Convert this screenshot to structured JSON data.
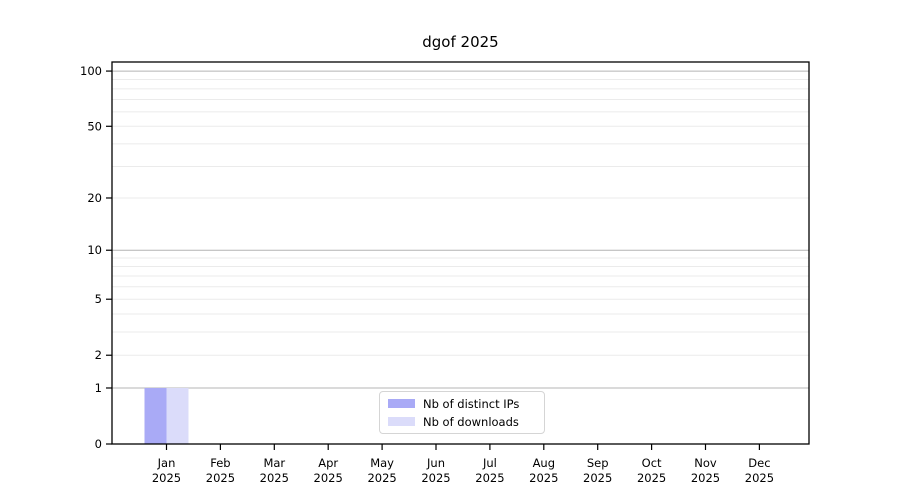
{
  "chart_data": {
    "type": "bar",
    "title": "dgof 2025",
    "categories": [
      {
        "label": "Jan",
        "sublabel": "2025"
      },
      {
        "label": "Feb",
        "sublabel": "2025"
      },
      {
        "label": "Mar",
        "sublabel": "2025"
      },
      {
        "label": "Apr",
        "sublabel": "2025"
      },
      {
        "label": "May",
        "sublabel": "2025"
      },
      {
        "label": "Jun",
        "sublabel": "2025"
      },
      {
        "label": "Jul",
        "sublabel": "2025"
      },
      {
        "label": "Aug",
        "sublabel": "2025"
      },
      {
        "label": "Sep",
        "sublabel": "2025"
      },
      {
        "label": "Oct",
        "sublabel": "2025"
      },
      {
        "label": "Nov",
        "sublabel": "2025"
      },
      {
        "label": "Dec",
        "sublabel": "2025"
      }
    ],
    "series": [
      {
        "name": "Nb of distinct IPs",
        "color": "#a9aaf6",
        "values": [
          1,
          0,
          0,
          0,
          0,
          0,
          0,
          0,
          0,
          0,
          0,
          0
        ]
      },
      {
        "name": "Nb of downloads",
        "color": "#dbdcfa",
        "values": [
          1,
          0,
          0,
          0,
          0,
          0,
          0,
          0,
          0,
          0,
          0,
          0
        ]
      }
    ],
    "y_scale": "log1p",
    "ylim": [
      0,
      112
    ],
    "y_major_ticks": [
      0,
      1,
      2,
      5,
      10,
      20,
      50,
      100
    ],
    "y_decade_gridlines": [
      1,
      10,
      100
    ],
    "y_minor_gridlines": [
      2,
      3,
      4,
      5,
      6,
      7,
      8,
      9,
      20,
      30,
      40,
      50,
      60,
      70,
      80,
      90
    ],
    "grid": true,
    "legend": {
      "position": "bottom-center",
      "entries": [
        {
          "label": "Nb of distinct IPs",
          "color": "#a9aaf6"
        },
        {
          "label": "Nb of downloads",
          "color": "#dbdcfa"
        }
      ]
    },
    "colors": {
      "decade_grid": "#b4b4b4",
      "minor_grid": "#ebebeb",
      "axis": "#000000",
      "tick_label": "#000000",
      "plot_background": "#ffffff"
    }
  }
}
